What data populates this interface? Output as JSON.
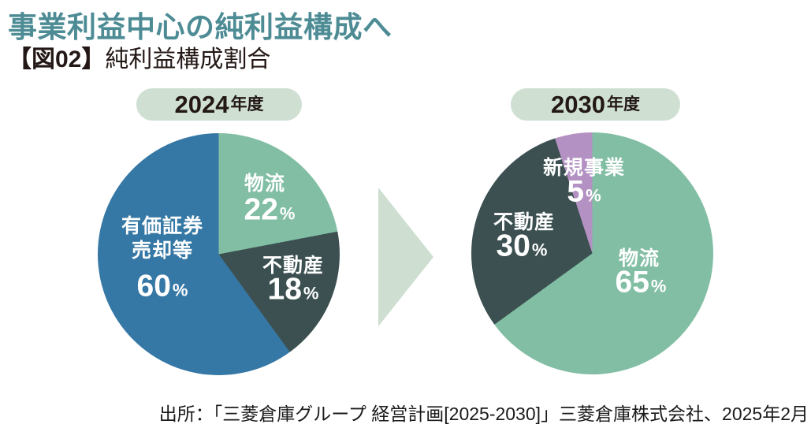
{
  "page": {
    "title": "事業利益中心の純利益構成へ",
    "subtitle_tag": "【図02】",
    "subtitle": "純利益構成割合",
    "source": "出所：「三菱倉庫グループ 経営計画[2025-2030]」三菱倉庫株式会社、2025年2月"
  },
  "colors": {
    "title_teal": "#4E8C95",
    "text_dark": "#231815",
    "badge_bg": "#CFE0D3",
    "arrow_green": "#CEDFD2",
    "label_white": "#FFFFFF"
  },
  "arrow_icon": "right-triangle",
  "chart_data": [
    {
      "type": "pie",
      "title": "2024年度",
      "title_year": "2024",
      "title_suffix": "年度",
      "unit": "%",
      "start_angle": "top",
      "direction": "clockwise",
      "segments": [
        {
          "label": "物流",
          "value": 22,
          "color": "#81BEA4"
        },
        {
          "label": "不動産",
          "value": 18,
          "color": "#3C5051"
        },
        {
          "label": "有価証券売却等",
          "label_lines": [
            "有価証券",
            "売却等"
          ],
          "value": 60,
          "color": "#3678A5"
        }
      ]
    },
    {
      "type": "pie",
      "title": "2030年度",
      "title_year": "2030",
      "title_suffix": "年度",
      "unit": "%",
      "start_angle": "top",
      "direction": "clockwise",
      "segments": [
        {
          "label": "物流",
          "value": 65,
          "color": "#81BEA4"
        },
        {
          "label": "不動産",
          "value": 30,
          "color": "#3C5051"
        },
        {
          "label": "新規事業",
          "value": 5,
          "color": "#B391C3"
        }
      ]
    }
  ]
}
